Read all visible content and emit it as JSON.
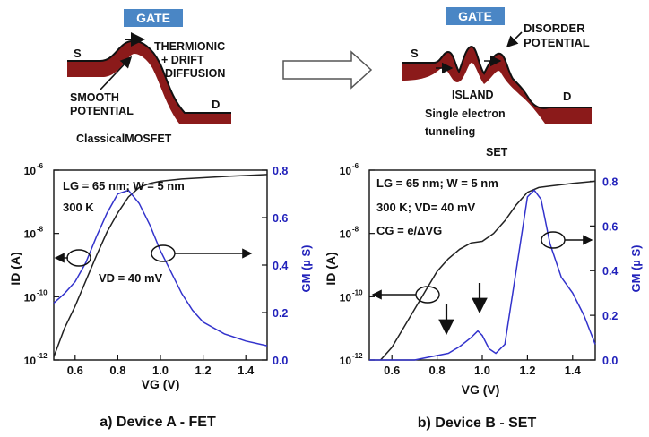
{
  "diagram": {
    "left": {
      "gate": "GATE",
      "source": "S",
      "drain": "D",
      "thermionic": "THERMIONIC",
      "drift": "+ DRIFT",
      "diffusion": "DIFFUSION",
      "smooth": "SMOOTH",
      "potential": "POTENTIAL",
      "caption": "ClassicalMOSFET"
    },
    "right": {
      "gate": "GATE",
      "source": "S",
      "drain": "D",
      "disorder": "DISORDER",
      "disorder_potential": "POTENTIAL",
      "island": "ISLAND",
      "single_electron": "Single electron",
      "tunneling": "tunneling",
      "caption": "SET"
    },
    "colors": {
      "gate": "#4a86c5",
      "electrode": "#8b1a1a"
    }
  },
  "chart_data": [
    {
      "type": "line",
      "caption": "a) Device A - FET",
      "xlabel": "VG (V)",
      "ylabel_left": "ID (A)",
      "ylabel_right": "GM (µ S)",
      "xlim": [
        0.5,
        1.5
      ],
      "xticks": [
        "0.6",
        "0.8",
        "1.0",
        "1.2",
        "1.4"
      ],
      "ylim_left_log": [
        -12,
        -6
      ],
      "yticks_left": [
        "10",
        "10",
        "10",
        "10"
      ],
      "yticks_left_exp": [
        "-6",
        "-8",
        "-10",
        "-12"
      ],
      "ylim_right": [
        0,
        0.8
      ],
      "yticks_right": [
        "0.8",
        "0.6",
        "0.4",
        "0.2",
        "0.0"
      ],
      "annotations": [
        "LG = 65 nm; W = 5 nm",
        "300 K",
        "VD = 40 mV"
      ],
      "series": [
        {
          "axis": "left",
          "color": "#222222",
          "x": [
            0.5,
            0.55,
            0.6,
            0.65,
            0.7,
            0.75,
            0.8,
            0.85,
            0.9,
            0.95,
            1.0,
            1.1,
            1.2,
            1.3,
            1.4,
            1.5
          ],
          "log10_y": [
            -11.9,
            -11.0,
            -10.3,
            -9.5,
            -8.7,
            -7.95,
            -7.35,
            -6.85,
            -6.55,
            -6.42,
            -6.35,
            -6.28,
            -6.24,
            -6.2,
            -6.17,
            -6.14
          ]
        },
        {
          "axis": "right",
          "color": "#3333cc",
          "x": [
            0.5,
            0.55,
            0.6,
            0.65,
            0.7,
            0.75,
            0.8,
            0.85,
            0.9,
            0.95,
            1.0,
            1.05,
            1.1,
            1.15,
            1.2,
            1.3,
            1.4,
            1.5
          ],
          "y": [
            0.24,
            0.28,
            0.33,
            0.41,
            0.52,
            0.62,
            0.7,
            0.715,
            0.66,
            0.57,
            0.46,
            0.37,
            0.28,
            0.21,
            0.16,
            0.11,
            0.08,
            0.06
          ]
        }
      ]
    },
    {
      "type": "line",
      "caption": "b) Device B  - SET",
      "xlabel": "VG (V)",
      "ylabel_left": "ID (A)",
      "ylabel_right": "GM (µ S)",
      "xlim": [
        0.5,
        1.5
      ],
      "xticks": [
        "0.6",
        "0.8",
        "1.0",
        "1.2",
        "1.4"
      ],
      "ylim_left_log": [
        -12,
        -6
      ],
      "yticks_left": [
        "10",
        "10",
        "10",
        "10"
      ],
      "yticks_left_exp": [
        "-6",
        "-8",
        "-10",
        "-12"
      ],
      "ylim_right": [
        0,
        0.85
      ],
      "yticks_right": [
        "0.8",
        "0.6",
        "0.4",
        "0.2",
        "0.0"
      ],
      "annotations": [
        "LG = 65 nm; W = 5 nm",
        "300 K; VD= 40 mV",
        "CG = e/ΔVG"
      ],
      "series": [
        {
          "axis": "left",
          "color": "#222222",
          "x": [
            0.55,
            0.6,
            0.65,
            0.7,
            0.75,
            0.8,
            0.85,
            0.9,
            0.95,
            1.0,
            1.05,
            1.1,
            1.15,
            1.2,
            1.25,
            1.3,
            1.4,
            1.5
          ],
          "log10_y": [
            -12.0,
            -11.6,
            -11.0,
            -10.4,
            -9.8,
            -9.2,
            -8.8,
            -8.5,
            -8.3,
            -8.25,
            -8.0,
            -7.6,
            -7.1,
            -6.7,
            -6.55,
            -6.5,
            -6.42,
            -6.35
          ]
        },
        {
          "axis": "right",
          "color": "#3333cc",
          "x": [
            0.5,
            0.6,
            0.7,
            0.75,
            0.8,
            0.85,
            0.9,
            0.95,
            0.98,
            1.0,
            1.03,
            1.06,
            1.1,
            1.15,
            1.2,
            1.23,
            1.26,
            1.3,
            1.35,
            1.4,
            1.45,
            1.5
          ],
          "y": [
            0.0,
            0.0,
            0.0,
            0.01,
            0.02,
            0.03,
            0.06,
            0.1,
            0.13,
            0.11,
            0.05,
            0.03,
            0.07,
            0.4,
            0.73,
            0.76,
            0.72,
            0.52,
            0.37,
            0.3,
            0.2,
            0.07
          ]
        }
      ]
    }
  ]
}
